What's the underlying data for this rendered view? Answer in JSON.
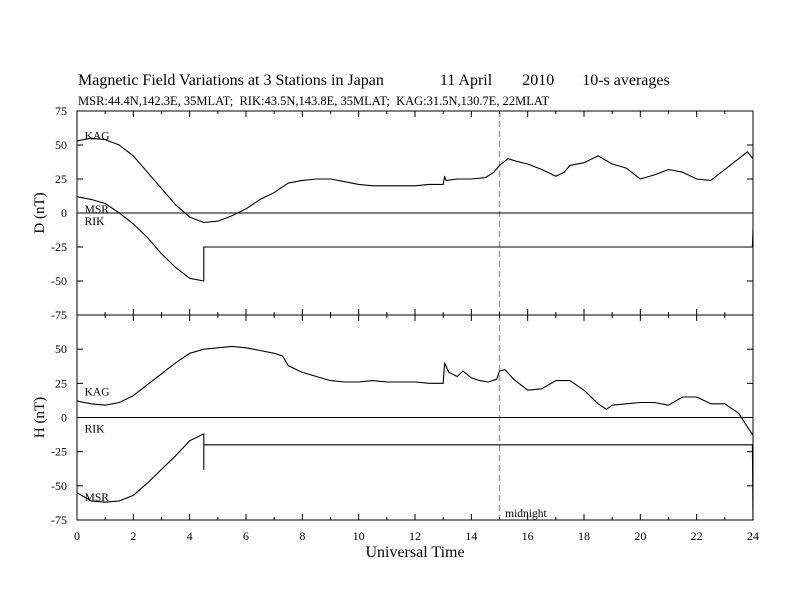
{
  "header": {
    "title_parts": [
      "Magnetic Field Variations at 3 Stations in Japan",
      "11 April",
      "2010",
      "10-s averages"
    ],
    "subtitle": "MSR:44.4N,142.3E, 35MLAT;  RIK:43.5N,143.8E, 35MLAT;  KAG:31.5N,130.7E, 22MLAT"
  },
  "chart_data": [
    {
      "type": "line",
      "panel": "top",
      "ylabel": "D (nT)",
      "ylim": [
        -75,
        75
      ],
      "yticks": [
        75,
        50,
        25,
        0,
        -25,
        -50,
        -75
      ],
      "xlim": [
        0,
        24
      ],
      "station_labels": [
        {
          "text": "KAG",
          "x": 0.2,
          "y": 57
        },
        {
          "text": "MSR",
          "x": 0.2,
          "y": 3
        },
        {
          "text": "RIK",
          "x": 0.2,
          "y": -6
        }
      ],
      "series": [
        {
          "name": "KAG",
          "points": [
            [
              0,
              53
            ],
            [
              0.5,
              55
            ],
            [
              1,
              54
            ],
            [
              1.5,
              50
            ],
            [
              2,
              42
            ],
            [
              2.5,
              30
            ],
            [
              3,
              18
            ],
            [
              3.5,
              6
            ],
            [
              4,
              -3
            ],
            [
              4.5,
              -7
            ],
            [
              5,
              -6
            ],
            [
              5.5,
              -2
            ],
            [
              6,
              3
            ],
            [
              6.5,
              10
            ],
            [
              7,
              15
            ],
            [
              7.5,
              22
            ],
            [
              8,
              24
            ],
            [
              8.5,
              25
            ],
            [
              9,
              25
            ],
            [
              9.5,
              23
            ],
            [
              10,
              21
            ],
            [
              10.5,
              20
            ],
            [
              11,
              20
            ],
            [
              11.5,
              20
            ],
            [
              12,
              20
            ],
            [
              12.5,
              21
            ],
            [
              13,
              21
            ],
            [
              13.05,
              27
            ],
            [
              13.1,
              24
            ],
            [
              13.5,
              25
            ],
            [
              14,
              25
            ],
            [
              14.5,
              26
            ],
            [
              14.8,
              30
            ],
            [
              15,
              35
            ],
            [
              15.3,
              40
            ],
            [
              15.6,
              38
            ],
            [
              16,
              36
            ],
            [
              16.5,
              32
            ],
            [
              17,
              27
            ],
            [
              17.3,
              30
            ],
            [
              17.5,
              35
            ],
            [
              18,
              37
            ],
            [
              18.5,
              42
            ],
            [
              19,
              36
            ],
            [
              19.5,
              33
            ],
            [
              20,
              25
            ],
            [
              20.5,
              28
            ],
            [
              21,
              32
            ],
            [
              21.5,
              30
            ],
            [
              22,
              25
            ],
            [
              22.5,
              24
            ],
            [
              23,
              32
            ],
            [
              23.5,
              40
            ],
            [
              23.8,
              45
            ],
            [
              24,
              40
            ]
          ]
        },
        {
          "name": "MSR",
          "points": [
            [
              0,
              0
            ],
            [
              24,
              0
            ]
          ]
        },
        {
          "name": "RIK",
          "points": [
            [
              0,
              12
            ],
            [
              0.5,
              10
            ],
            [
              1,
              7
            ],
            [
              1.5,
              0
            ],
            [
              2,
              -8
            ],
            [
              2.5,
              -18
            ],
            [
              3,
              -30
            ],
            [
              3.5,
              -40
            ],
            [
              4,
              -48
            ],
            [
              4.5,
              -50
            ],
            [
              4.5,
              -25
            ],
            [
              23.98,
              -25
            ],
            [
              24,
              -12
            ]
          ]
        }
      ]
    },
    {
      "type": "line",
      "panel": "bottom",
      "ylabel": "H (nT)",
      "ylim": [
        -75,
        75
      ],
      "yticks": [
        50,
        25,
        0,
        -25,
        -50,
        -75
      ],
      "xlim": [
        0,
        24
      ],
      "xlabel": "Universal Time",
      "xticks": [
        0,
        2,
        4,
        6,
        8,
        10,
        12,
        14,
        16,
        18,
        20,
        22,
        24
      ],
      "station_labels": [
        {
          "text": "KAG",
          "x": 0.2,
          "y": 19
        },
        {
          "text": "RIK",
          "x": 0.2,
          "y": -8
        },
        {
          "text": "MSR",
          "x": 0.2,
          "y": -58
        }
      ],
      "annotation": {
        "text": "midnight",
        "x": 15.2,
        "y": -70
      },
      "series": [
        {
          "name": "KAG",
          "points": [
            [
              0,
              12
            ],
            [
              0.5,
              10
            ],
            [
              1,
              9
            ],
            [
              1.5,
              11
            ],
            [
              2,
              16
            ],
            [
              2.5,
              24
            ],
            [
              3,
              32
            ],
            [
              3.5,
              40
            ],
            [
              4,
              47
            ],
            [
              4.5,
              50
            ],
            [
              5,
              51
            ],
            [
              5.5,
              52
            ],
            [
              6,
              51
            ],
            [
              6.5,
              49
            ],
            [
              7,
              47
            ],
            [
              7.3,
              45
            ],
            [
              7.5,
              38
            ],
            [
              8,
              33
            ],
            [
              8.5,
              30
            ],
            [
              9,
              27
            ],
            [
              9.5,
              26
            ],
            [
              10,
              26
            ],
            [
              10.5,
              27
            ],
            [
              11,
              26
            ],
            [
              11.5,
              26
            ],
            [
              12,
              26
            ],
            [
              12.5,
              25
            ],
            [
              13,
              25
            ],
            [
              13.05,
              40
            ],
            [
              13.2,
              33
            ],
            [
              13.5,
              30
            ],
            [
              13.7,
              34
            ],
            [
              14,
              29
            ],
            [
              14.3,
              27
            ],
            [
              14.6,
              26
            ],
            [
              14.9,
              28
            ],
            [
              15,
              34
            ],
            [
              15.2,
              35
            ],
            [
              15.5,
              28
            ],
            [
              16,
              20
            ],
            [
              16.5,
              21
            ],
            [
              17,
              27
            ],
            [
              17.5,
              27
            ],
            [
              18,
              20
            ],
            [
              18.5,
              10
            ],
            [
              18.8,
              6
            ],
            [
              19,
              9
            ],
            [
              19.5,
              10
            ],
            [
              20,
              11
            ],
            [
              20.5,
              11
            ],
            [
              21,
              9
            ],
            [
              21.5,
              15
            ],
            [
              22,
              15
            ],
            [
              22.5,
              10
            ],
            [
              23,
              10
            ],
            [
              23.5,
              3
            ],
            [
              23.8,
              -7
            ],
            [
              24,
              -13
            ]
          ]
        },
        {
          "name": "RIK",
          "points": [
            [
              0,
              0
            ],
            [
              24,
              0
            ]
          ]
        },
        {
          "name": "MSR",
          "points": [
            [
              0,
              -55
            ],
            [
              0.5,
              -61
            ],
            [
              1,
              -62
            ],
            [
              1.5,
              -61
            ],
            [
              2,
              -57
            ],
            [
              2.5,
              -48
            ],
            [
              3,
              -38
            ],
            [
              3.5,
              -28
            ],
            [
              4,
              -17
            ],
            [
              4.3,
              -14
            ],
            [
              4.5,
              -12
            ],
            [
              4.5,
              -38
            ],
            [
              4.5,
              -20
            ],
            [
              23.98,
              -20
            ],
            [
              24,
              -75
            ]
          ]
        }
      ]
    }
  ]
}
